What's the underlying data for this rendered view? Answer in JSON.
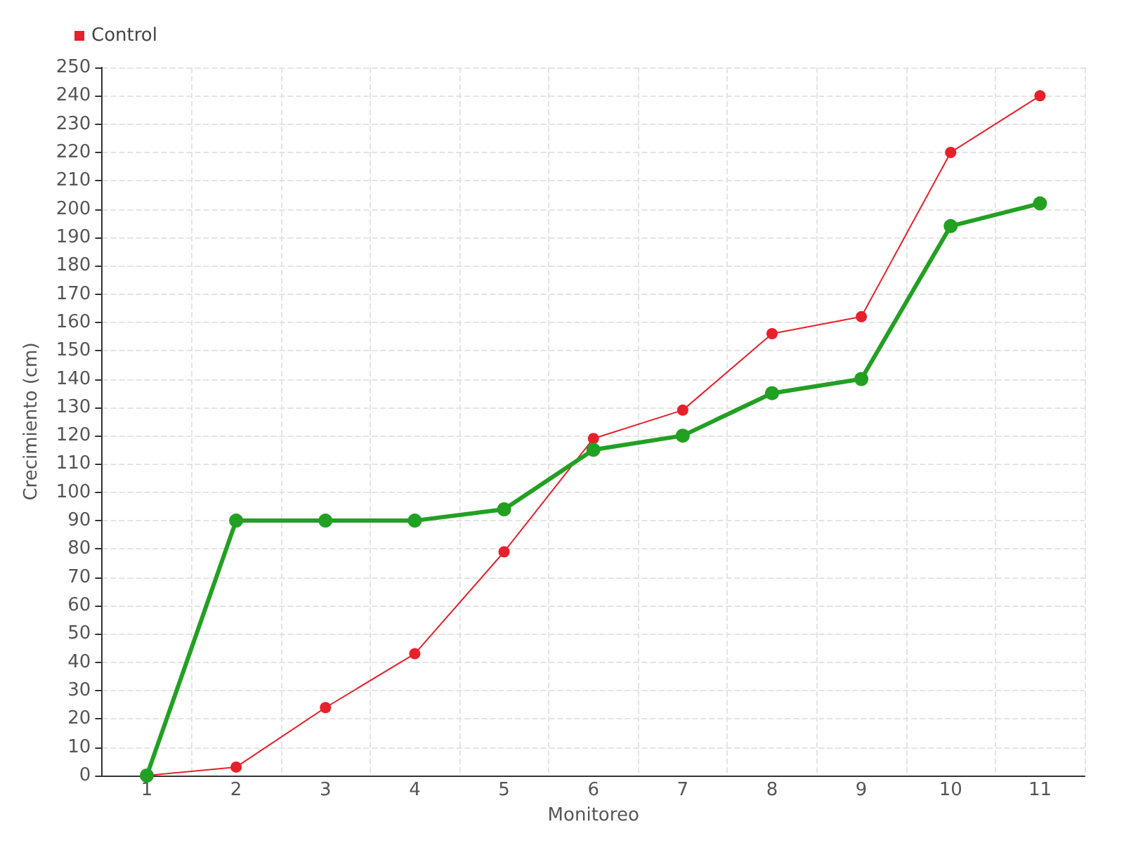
{
  "chart_data": {
    "type": "line",
    "xlabel": "Monitoreo",
    "ylabel": "Crecimiento (cm)",
    "categories": [
      "1",
      "2",
      "3",
      "4",
      "5",
      "6",
      "7",
      "8",
      "9",
      "10",
      "11"
    ],
    "series": [
      {
        "color": "#22a022",
        "values": [
          0,
          90,
          90,
          90,
          94,
          115,
          120,
          135,
          140,
          194,
          202
        ]
      },
      {
        "name": "Control",
        "color": "#e8202a",
        "values": [
          0,
          3,
          24,
          43,
          79,
          119,
          129,
          156,
          162,
          220,
          240
        ]
      }
    ],
    "ylim": [
      0,
      250
    ],
    "yticks": [
      0,
      10,
      20,
      30,
      40,
      50,
      60,
      70,
      80,
      90,
      100,
      110,
      120,
      130,
      140,
      150,
      160,
      170,
      180,
      190,
      200,
      210,
      220,
      230,
      240,
      250
    ],
    "grid": true,
    "legend": "top left",
    "marker": "circle",
    "line_style": "solid"
  }
}
